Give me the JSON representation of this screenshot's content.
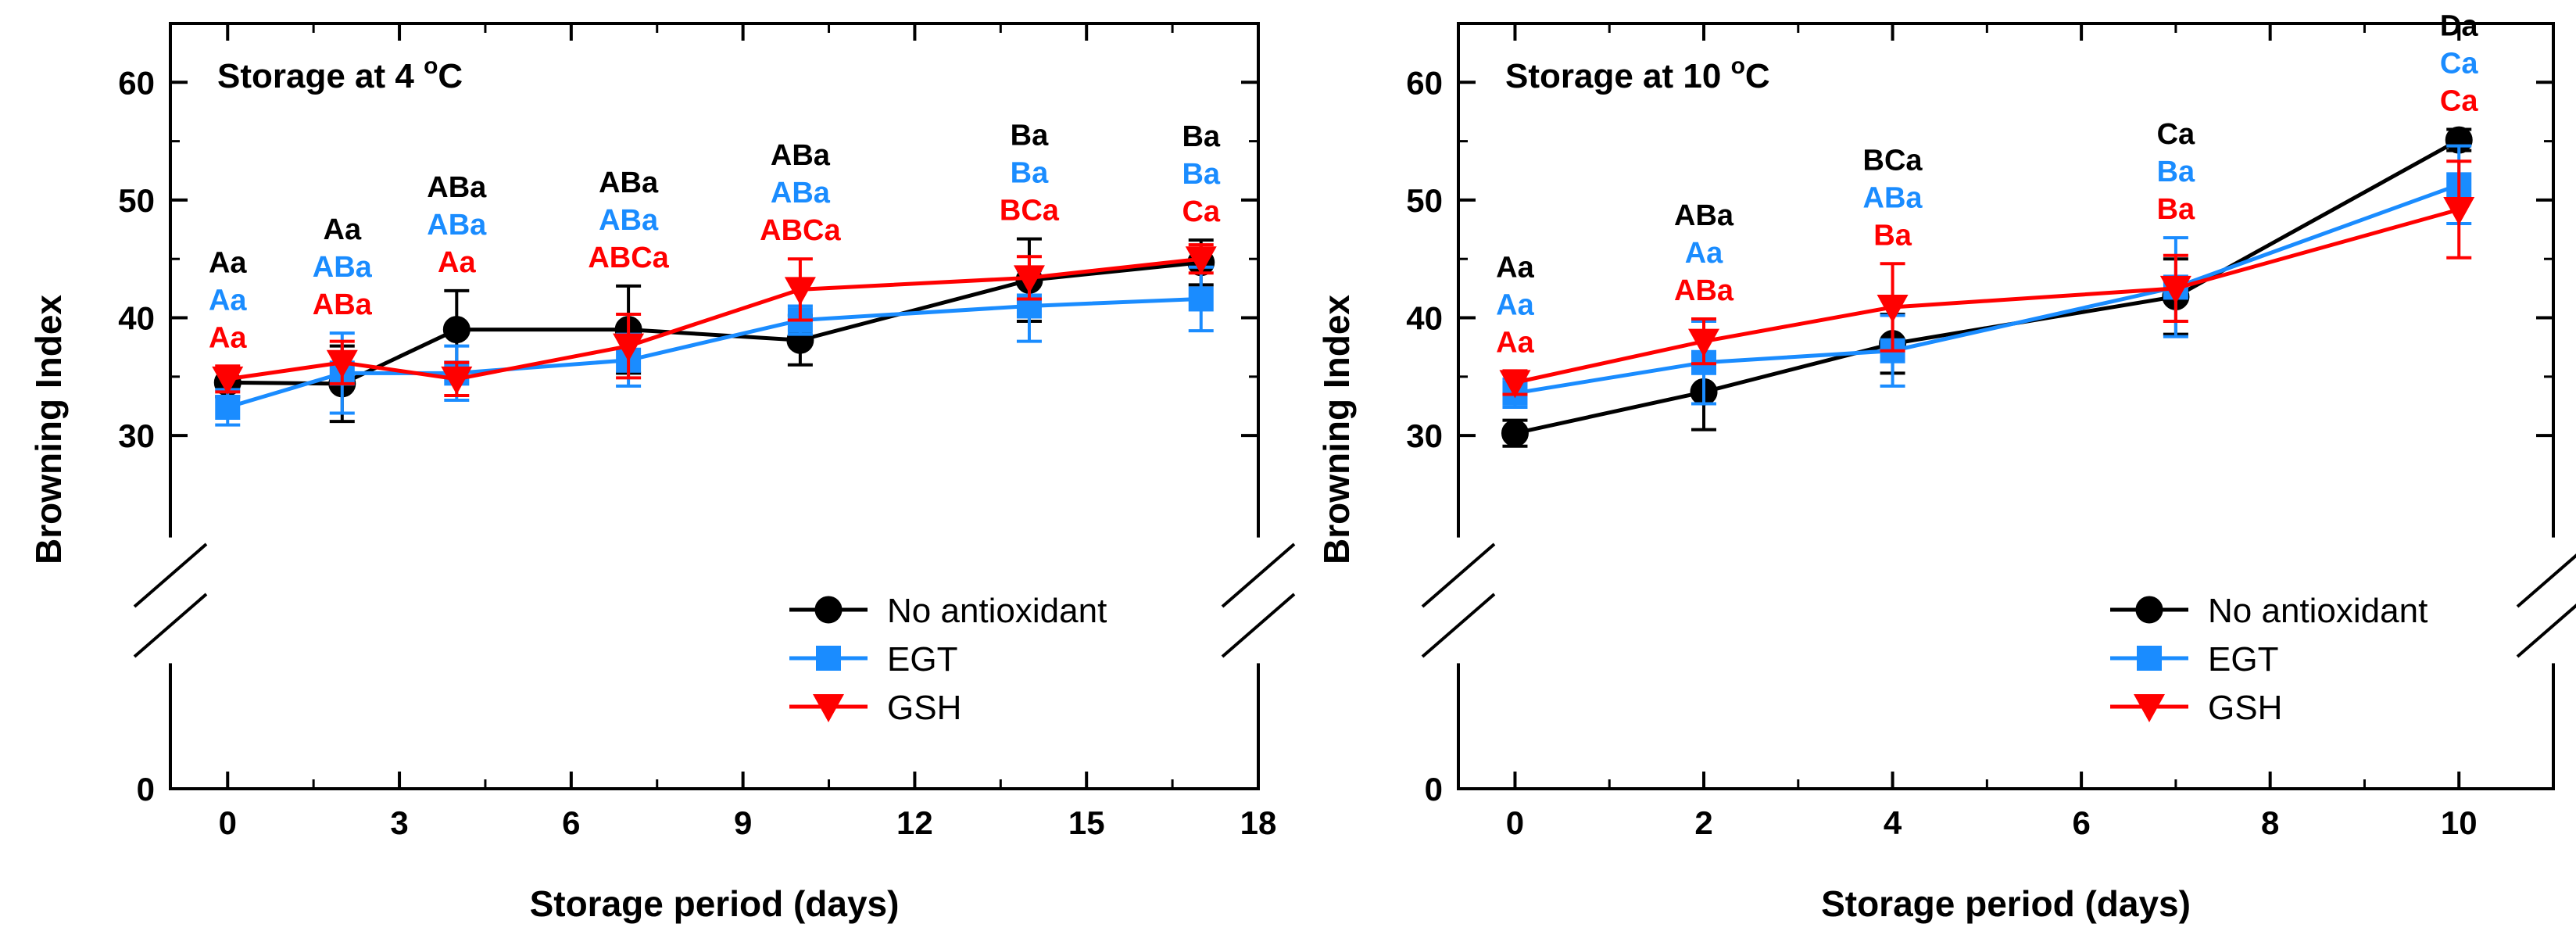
{
  "colors": {
    "No antioxidant": "#000000",
    "EGT": "#1a8cff",
    "GSH": "#ff0000"
  },
  "chart_data": [
    {
      "type": "line",
      "title": "Storage at 4 °C",
      "title_main": "Storage at 4 ",
      "title_deg": "o",
      "title_unit": "C",
      "xlabel": "Storage period (days)",
      "ylabel": "Browning Index",
      "xlim": [
        -1,
        18
      ],
      "ylim": [
        0,
        65
      ],
      "axis_break": [
        5,
        27
      ],
      "xticks": [
        0,
        3,
        6,
        9,
        12,
        15,
        18
      ],
      "yticks": [
        0,
        30,
        40,
        50,
        60
      ],
      "legend_position": "bottom-right",
      "x": [
        0,
        2,
        4,
        7,
        10,
        14,
        17
      ],
      "series": [
        {
          "name": "No antioxidant",
          "marker": "circle",
          "values": [
            34.5,
            34.4,
            39.0,
            39.0,
            38.1,
            43.2,
            44.7
          ],
          "errors": [
            1.2,
            3.2,
            3.3,
            3.7,
            2.1,
            3.5,
            1.9
          ],
          "letters": [
            "Aa",
            "Aa",
            "ABa",
            "ABa",
            "ABa",
            "Ba",
            "Ba"
          ]
        },
        {
          "name": "EGT",
          "marker": "square",
          "values": [
            32.4,
            35.3,
            35.3,
            36.4,
            39.8,
            41.0,
            41.6
          ],
          "errors": [
            1.5,
            3.4,
            2.3,
            2.2,
            1.2,
            3.0,
            2.7
          ],
          "letters": [
            "Aa",
            "ABa",
            "ABa",
            "ABa",
            "ABa",
            "Ba",
            "Ba"
          ]
        },
        {
          "name": "GSH",
          "marker": "triangle-down",
          "values": [
            34.8,
            36.2,
            34.8,
            37.6,
            42.4,
            43.4,
            45.0
          ],
          "errors": [
            1.1,
            1.8,
            1.4,
            2.7,
            2.6,
            1.8,
            1.2
          ],
          "letters": [
            "Aa",
            "ABa",
            "Aa",
            "ABCa",
            "ABCa",
            "BCa",
            "Ca"
          ]
        }
      ]
    },
    {
      "type": "line",
      "title": "Storage at 10 °C",
      "title_main": "Storage at 10 ",
      "title_deg": "o",
      "title_unit": "C",
      "xlabel": "Storage period (days)",
      "ylabel": "Browning Index",
      "xlim": [
        -0.6,
        11
      ],
      "ylim": [
        0,
        65
      ],
      "axis_break": [
        5,
        27
      ],
      "xticks": [
        0,
        2,
        4,
        6,
        8,
        10
      ],
      "yticks": [
        0,
        30,
        40,
        50,
        60
      ],
      "legend_position": "bottom-right",
      "x": [
        0,
        2,
        4,
        7,
        10
      ],
      "series": [
        {
          "name": "No antioxidant",
          "marker": "circle",
          "values": [
            30.2,
            33.7,
            37.8,
            41.8,
            55.1
          ],
          "errors": [
            1.1,
            3.2,
            2.5,
            3.2,
            0.9
          ],
          "letters": [
            "Aa",
            "ABa",
            "BCa",
            "Ca",
            "Da"
          ]
        },
        {
          "name": "EGT",
          "marker": "square",
          "values": [
            33.6,
            36.2,
            37.2,
            42.6,
            51.3
          ],
          "errors": [
            1.2,
            3.5,
            3.0,
            4.2,
            3.3
          ],
          "letters": [
            "Aa",
            "Aa",
            "ABa",
            "Ba",
            "Ca"
          ]
        },
        {
          "name": "GSH",
          "marker": "triangle-down",
          "values": [
            34.5,
            38.0,
            40.9,
            42.5,
            49.2
          ],
          "errors": [
            1.0,
            1.9,
            3.7,
            2.8,
            4.1
          ],
          "letters": [
            "Aa",
            "ABa",
            "Ba",
            "Ba",
            "Ca"
          ]
        }
      ]
    }
  ]
}
